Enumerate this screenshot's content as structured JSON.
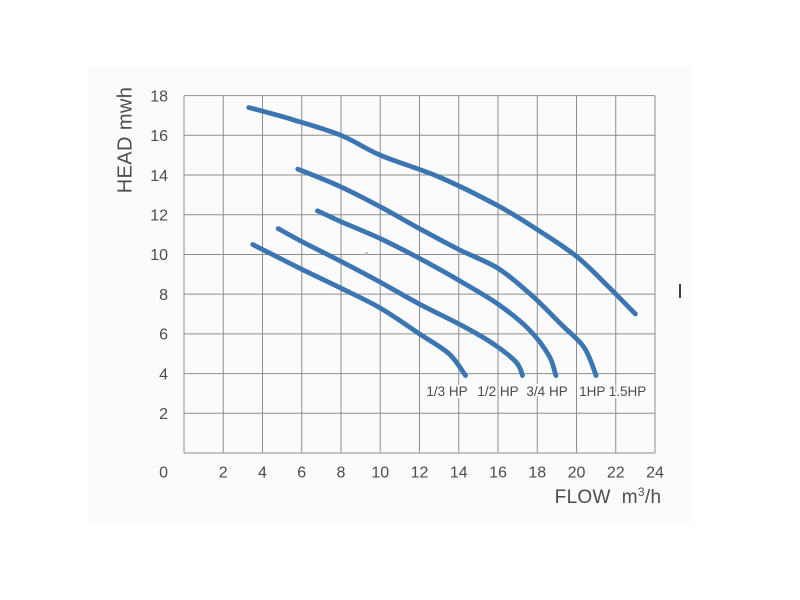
{
  "chart_data": {
    "type": "line",
    "title": "",
    "ylabel": "HEAD mwh",
    "xlabel": {
      "prefix": "FLOW",
      "unit_base": "m",
      "unit_sup": "3",
      "unit_rest": "/h"
    },
    "xlim": [
      0,
      24
    ],
    "ylim": [
      0,
      18
    ],
    "x_tick_step": 2,
    "y_tick_step": 2,
    "grid": true,
    "x_ticks": [
      2,
      4,
      6,
      8,
      10,
      12,
      14,
      16,
      18,
      20,
      22,
      24
    ],
    "y_ticks": [
      18,
      16,
      14,
      12,
      10,
      8,
      6,
      4,
      2
    ],
    "origin_label": "0",
    "legend_position": "inline-annotations",
    "series": [
      {
        "name": "1.5HP",
        "points": [
          [
            3.3,
            17.4
          ],
          [
            5.5,
            16.8
          ],
          [
            8,
            16
          ],
          [
            10,
            15
          ],
          [
            13,
            13.9
          ],
          [
            16,
            12.45
          ],
          [
            18,
            11.25
          ],
          [
            20,
            9.9
          ],
          [
            21.6,
            8.4
          ],
          [
            23,
            7
          ]
        ]
      },
      {
        "name": "1HP",
        "points": [
          [
            5.8,
            14.3
          ],
          [
            8,
            13.4
          ],
          [
            10,
            12.4
          ],
          [
            12,
            11.3
          ],
          [
            14,
            10.25
          ],
          [
            16,
            9.3
          ],
          [
            17.7,
            7.95
          ],
          [
            19.3,
            6.4
          ],
          [
            20.4,
            5.3
          ],
          [
            21,
            3.9
          ]
        ]
      },
      {
        "name": "3/4 HP",
        "points": [
          [
            6.8,
            12.2
          ],
          [
            8,
            11.65
          ],
          [
            10,
            10.8
          ],
          [
            12,
            9.8
          ],
          [
            14,
            8.7
          ],
          [
            16,
            7.5
          ],
          [
            17.6,
            6.2
          ],
          [
            18.6,
            4.9
          ],
          [
            18.95,
            3.9
          ]
        ]
      },
      {
        "name": "1/2 HP",
        "points": [
          [
            4.8,
            11.3
          ],
          [
            6,
            10.65
          ],
          [
            8,
            9.65
          ],
          [
            10,
            8.6
          ],
          [
            12,
            7.5
          ],
          [
            14,
            6.5
          ],
          [
            15.6,
            5.6
          ],
          [
            16.9,
            4.6
          ],
          [
            17.25,
            3.9
          ]
        ]
      },
      {
        "name": "1/3 HP",
        "points": [
          [
            3.5,
            10.5
          ],
          [
            5,
            9.75
          ],
          [
            6,
            9.25
          ],
          [
            8,
            8.3
          ],
          [
            10,
            7.3
          ],
          [
            12,
            6
          ],
          [
            13.5,
            5
          ],
          [
            14.35,
            3.9
          ]
        ]
      }
    ],
    "annotations": [
      {
        "text": "1/3 HP",
        "x": 13.4,
        "y": 3.1
      },
      {
        "text": "1/2 HP",
        "x": 16.0,
        "y": 3.1
      },
      {
        "text": "3/4 HP",
        "x": 18.5,
        "y": 3.1
      },
      {
        "text": "1HP",
        "x": 20.8,
        "y": 3.1
      },
      {
        "text": "1.5HP",
        "x": 22.6,
        "y": 3.1
      }
    ],
    "colors": {
      "curve": "#3b76b2",
      "grid": "#8e8e8e",
      "text": "#4c4c4c",
      "scan_background": "#fbfbfb",
      "stray_mark": "#3f3f3f"
    }
  }
}
